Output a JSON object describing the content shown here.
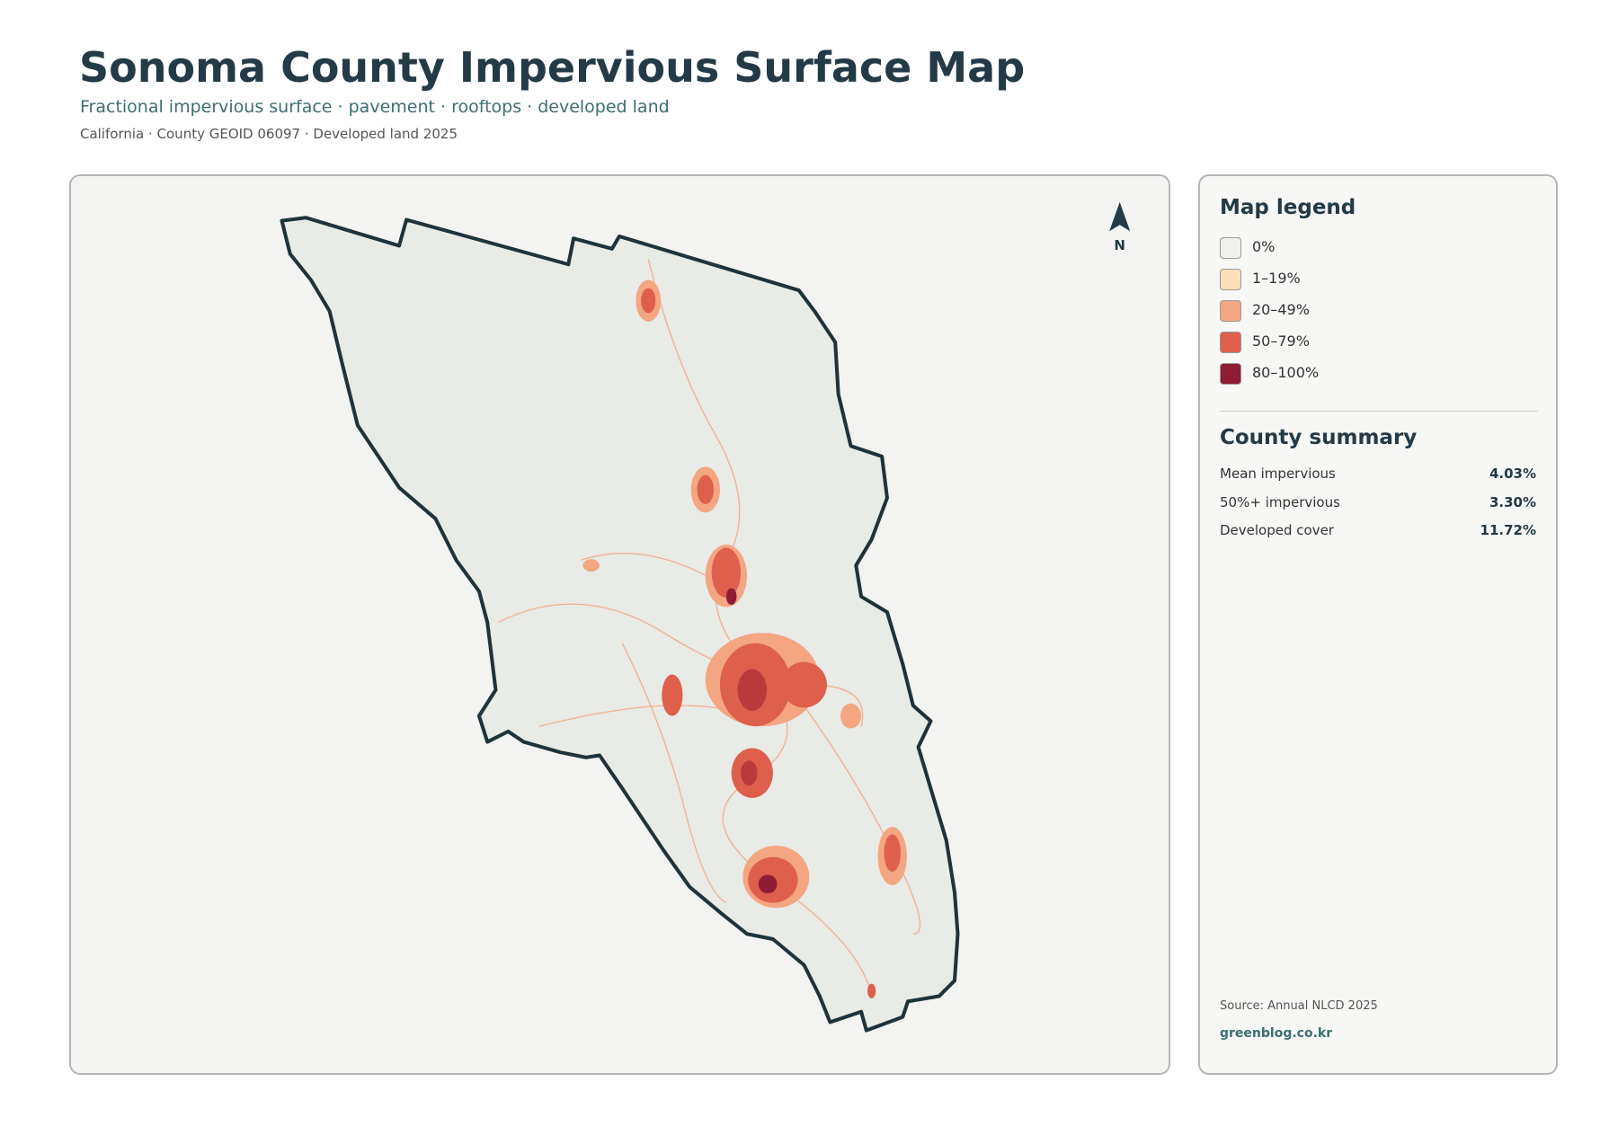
{
  "header": {
    "title": "Sonoma County Impervious Surface Map",
    "subtitle": "Fractional impervious surface · pavement · rooftops · developed land",
    "meta": "California · County GEOID 06097 · Developed land 2025"
  },
  "map": {
    "north_label": "N"
  },
  "legend": {
    "title": "Map legend",
    "items": [
      {
        "label": "0%",
        "color": "#efefec"
      },
      {
        "label": "1–19%",
        "color": "#fde0bb"
      },
      {
        "label": "20–49%",
        "color": "#f4a582"
      },
      {
        "label": "50–79%",
        "color": "#de5f4b"
      },
      {
        "label": "80–100%",
        "color": "#8e1d35"
      }
    ]
  },
  "summary": {
    "title": "County summary",
    "rows": [
      {
        "label": "Mean impervious",
        "value": "4.03%"
      },
      {
        "label": "50%+ impervious",
        "value": "3.30%"
      },
      {
        "label": "Developed cover",
        "value": "11.72%"
      }
    ]
  },
  "footer": {
    "source": "Source: Annual NLCD 2025",
    "site": "greenblog.co.kr"
  }
}
